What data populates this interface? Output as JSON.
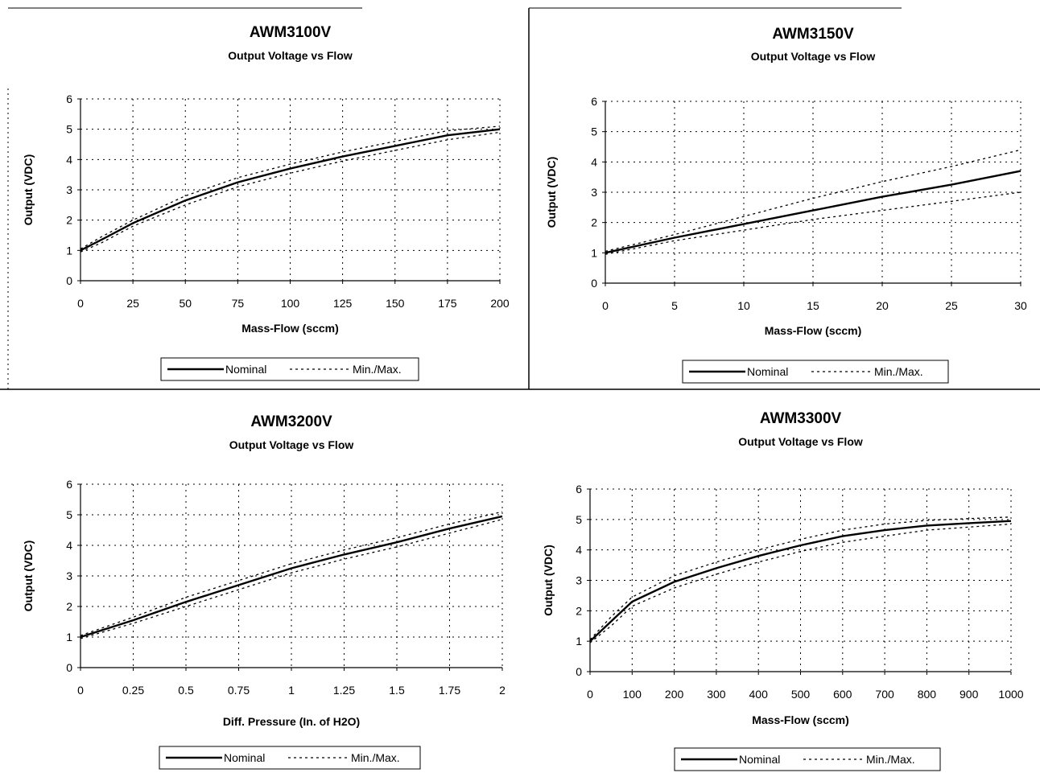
{
  "chart_data": [
    {
      "type": "line",
      "title": "AWM3100V",
      "subtitle": "Output Voltage vs Flow",
      "xlabel": "Mass-Flow (sccm)",
      "ylabel": "Output (VDC)",
      "xlim": [
        0,
        200
      ],
      "ylim": [
        0,
        6
      ],
      "xticks": [
        "0",
        "25",
        "50",
        "75",
        "100",
        "125",
        "150",
        "175",
        "200"
      ],
      "yticks": [
        "0",
        "1",
        "2",
        "3",
        "4",
        "5",
        "6"
      ],
      "grid": true,
      "legend": {
        "placement": "bottom-center",
        "entries": [
          "Nominal",
          "Min./Max."
        ]
      },
      "x": [
        0,
        10,
        25,
        50,
        75,
        100,
        125,
        150,
        175,
        200
      ],
      "series": [
        {
          "name": "Nominal",
          "style": "solid",
          "values": [
            1.0,
            1.35,
            1.9,
            2.65,
            3.25,
            3.7,
            4.1,
            4.45,
            4.8,
            5.0
          ]
        },
        {
          "name": "Min./Max.",
          "style": "dotted",
          "values": [
            1.05,
            1.45,
            2.0,
            2.8,
            3.4,
            3.85,
            4.25,
            4.6,
            4.95,
            5.1
          ]
        },
        {
          "name": "Min./Max.",
          "style": "dotted",
          "values": [
            0.95,
            1.25,
            1.8,
            2.5,
            3.1,
            3.55,
            3.95,
            4.3,
            4.65,
            4.9
          ]
        }
      ]
    },
    {
      "type": "line",
      "title": "AWM3150V",
      "subtitle": "Output Voltage vs Flow",
      "xlabel": "Mass-Flow (sccm)",
      "ylabel": "Output (VDC)",
      "xlim": [
        0,
        30
      ],
      "ylim": [
        0,
        6
      ],
      "xticks": [
        "0",
        "5",
        "10",
        "15",
        "20",
        "25",
        "30"
      ],
      "yticks": [
        "0",
        "1",
        "2",
        "3",
        "4",
        "5",
        "6"
      ],
      "grid": true,
      "legend": {
        "placement": "bottom-center",
        "entries": [
          "Nominal",
          "Min./Max."
        ]
      },
      "x": [
        0,
        5,
        10,
        15,
        20,
        25,
        30
      ],
      "series": [
        {
          "name": "Nominal",
          "style": "solid",
          "values": [
            1.0,
            1.5,
            1.95,
            2.4,
            2.85,
            3.25,
            3.7
          ]
        },
        {
          "name": "Min./Max.",
          "style": "dotted",
          "values": [
            1.05,
            1.6,
            2.2,
            2.8,
            3.35,
            3.85,
            4.4
          ]
        },
        {
          "name": "Min./Max.",
          "style": "dotted",
          "values": [
            0.95,
            1.4,
            1.75,
            2.1,
            2.4,
            2.7,
            3.0
          ]
        }
      ]
    },
    {
      "type": "line",
      "title": "AWM3200V",
      "subtitle": "Output Voltage vs Flow",
      "xlabel": "Diff. Pressure (In. of H2O)",
      "ylabel": "Output (VDC)",
      "xlim": [
        0,
        2
      ],
      "ylim": [
        0,
        6
      ],
      "xticks": [
        "0",
        "0.25",
        "0.5",
        "0.75",
        "1",
        "1.25",
        "1.5",
        "1.75",
        "2"
      ],
      "yticks": [
        "0",
        "1",
        "2",
        "3",
        "4",
        "5",
        "6"
      ],
      "grid": true,
      "legend": {
        "placement": "bottom-center",
        "entries": [
          "Nominal",
          "Min./Max."
        ]
      },
      "x": [
        0,
        0.25,
        0.5,
        0.75,
        1,
        1.25,
        1.5,
        1.75,
        2
      ],
      "series": [
        {
          "name": "Nominal",
          "style": "solid",
          "values": [
            1.0,
            1.55,
            2.15,
            2.7,
            3.25,
            3.7,
            4.1,
            4.55,
            4.95
          ]
        },
        {
          "name": "Min./Max.",
          "style": "dotted",
          "values": [
            1.05,
            1.65,
            2.3,
            2.85,
            3.4,
            3.85,
            4.25,
            4.7,
            5.1
          ]
        },
        {
          "name": "Min./Max.",
          "style": "dotted",
          "values": [
            0.95,
            1.45,
            2.0,
            2.55,
            3.1,
            3.55,
            3.95,
            4.4,
            4.85
          ]
        }
      ]
    },
    {
      "type": "line",
      "title": "AWM3300V",
      "subtitle": "Output Voltage vs Flow",
      "xlabel": "Mass-Flow (sccm)",
      "ylabel": "Output (VDC)",
      "xlim": [
        0,
        1000
      ],
      "ylim": [
        0,
        6
      ],
      "xticks": [
        "0",
        "100",
        "200",
        "300",
        "400",
        "500",
        "600",
        "700",
        "800",
        "900",
        "1000"
      ],
      "yticks": [
        "0",
        "1",
        "2",
        "3",
        "4",
        "5",
        "6"
      ],
      "grid": true,
      "legend": {
        "placement": "bottom-center",
        "entries": [
          "Nominal",
          "Min./Max."
        ]
      },
      "x": [
        0,
        50,
        100,
        200,
        300,
        400,
        500,
        600,
        700,
        800,
        900,
        1000
      ],
      "series": [
        {
          "name": "Nominal",
          "style": "solid",
          "values": [
            1.0,
            1.65,
            2.3,
            2.95,
            3.4,
            3.8,
            4.15,
            4.45,
            4.65,
            4.8,
            4.88,
            4.95
          ]
        },
        {
          "name": "Min./Max.",
          "style": "dotted",
          "values": [
            1.05,
            1.8,
            2.45,
            3.15,
            3.6,
            4.0,
            4.35,
            4.65,
            4.85,
            4.97,
            5.03,
            5.08
          ]
        },
        {
          "name": "Min./Max.",
          "style": "dotted",
          "values": [
            0.95,
            1.5,
            2.15,
            2.75,
            3.2,
            3.6,
            3.95,
            4.25,
            4.45,
            4.65,
            4.75,
            4.85
          ]
        }
      ]
    }
  ]
}
